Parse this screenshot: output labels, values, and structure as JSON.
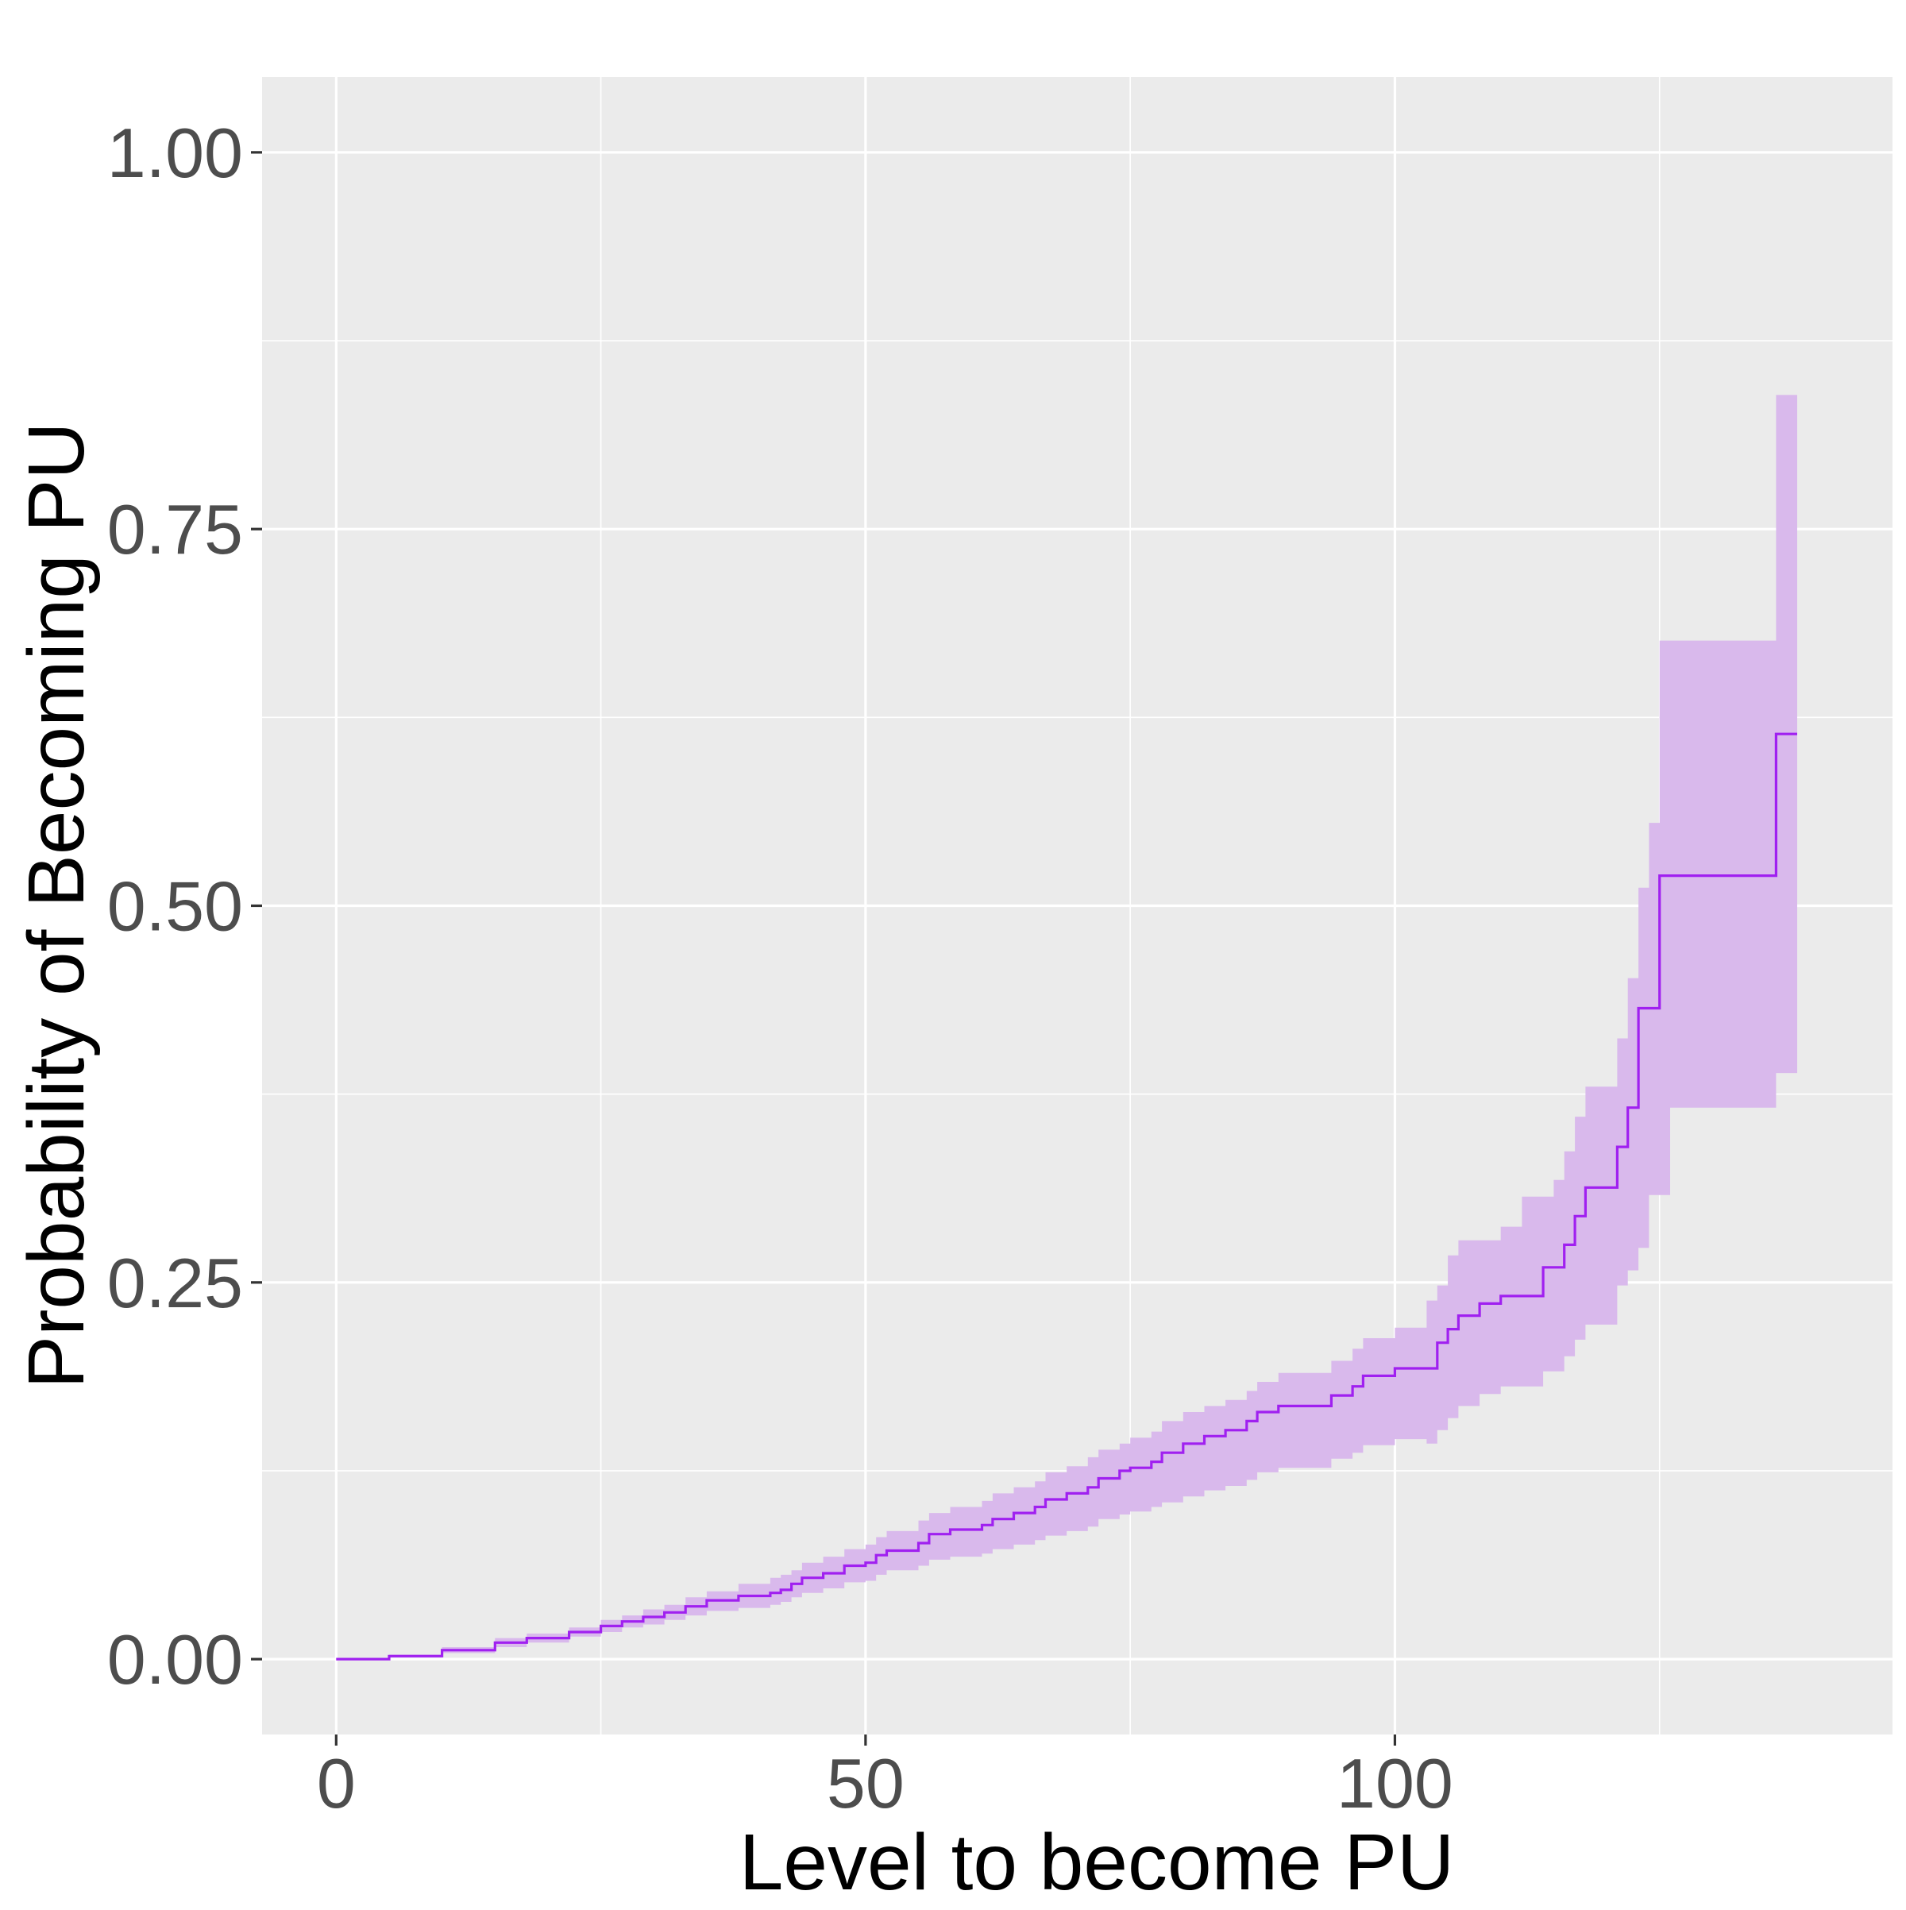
{
  "chart_data": {
    "type": "line",
    "title": "",
    "xlabel": "Level to become PU",
    "ylabel": "Probability of Becoming PU",
    "xlim": [
      -7,
      147
    ],
    "ylim": [
      -0.05,
      1.05
    ],
    "x_ticks": [
      0,
      50,
      100
    ],
    "x_tick_labels": [
      "0",
      "50",
      "100"
    ],
    "x_minor_ticks": [
      25,
      75,
      125
    ],
    "y_ticks": [
      0,
      0.25,
      0.5,
      0.75,
      1
    ],
    "y_tick_labels": [
      "0.00",
      "0.25",
      "0.50",
      "0.75",
      "1.00"
    ],
    "y_minor_ticks": [
      0.125,
      0.375,
      0.625,
      0.875
    ],
    "grid": true,
    "colors": {
      "panel": "#EBEBEB",
      "grid": "#FFFFFF",
      "line": "#A020F0",
      "band": "#D9B9EC",
      "tick_text": "#4D4D4D",
      "axis_title": "#000000"
    },
    "series": [
      {
        "style": "step",
        "x": [
          0,
          5,
          10,
          15,
          18,
          22,
          25,
          27,
          29,
          31,
          33,
          35,
          38,
          41,
          42,
          43,
          44,
          46,
          48,
          50,
          51,
          52,
          55,
          56,
          58,
          61,
          62,
          64,
          66,
          67,
          69,
          71,
          72,
          74,
          75,
          77,
          78,
          80,
          82,
          84,
          86,
          87,
          89,
          93,
          94,
          96,
          97,
          100,
          103,
          104,
          105,
          106,
          108,
          110,
          112,
          114,
          115,
          116,
          117,
          118,
          120,
          121,
          122,
          123,
          124,
          125,
          126,
          127,
          131,
          136,
          138
        ],
        "y": [
          0,
          0.002,
          0.006,
          0.011,
          0.014,
          0.018,
          0.022,
          0.025,
          0.028,
          0.031,
          0.035,
          0.039,
          0.042,
          0.044,
          0.046,
          0.05,
          0.054,
          0.057,
          0.062,
          0.064,
          0.069,
          0.072,
          0.077,
          0.083,
          0.086,
          0.089,
          0.093,
          0.097,
          0.101,
          0.106,
          0.11,
          0.114,
          0.12,
          0.125,
          0.127,
          0.131,
          0.137,
          0.143,
          0.148,
          0.152,
          0.158,
          0.164,
          0.168,
          0.168,
          0.175,
          0.181,
          0.188,
          0.193,
          0.193,
          0.21,
          0.219,
          0.228,
          0.236,
          0.241,
          0.241,
          0.26,
          0.26,
          0.275,
          0.294,
          0.313,
          0.313,
          0.34,
          0.366,
          0.432,
          0.432,
          0.52,
          0.52,
          0.52,
          0.52,
          0.614,
          0.614
        ],
        "ci_lower": [
          0,
          0.001,
          0.004,
          0.008,
          0.011,
          0.015,
          0.018,
          0.021,
          0.023,
          0.026,
          0.029,
          0.032,
          0.034,
          0.036,
          0.038,
          0.041,
          0.044,
          0.047,
          0.051,
          0.052,
          0.056,
          0.059,
          0.062,
          0.066,
          0.068,
          0.07,
          0.073,
          0.076,
          0.079,
          0.082,
          0.085,
          0.088,
          0.093,
          0.096,
          0.098,
          0.101,
          0.104,
          0.108,
          0.112,
          0.115,
          0.119,
          0.124,
          0.127,
          0.127,
          0.133,
          0.137,
          0.142,
          0.146,
          0.143,
          0.152,
          0.16,
          0.168,
          0.176,
          0.181,
          0.181,
          0.191,
          0.191,
          0.201,
          0.212,
          0.222,
          0.222,
          0.248,
          0.258,
          0.273,
          0.308,
          0.308,
          0.366,
          0.366,
          0.366,
          0.389,
          0.389
        ],
        "ci_upper": [
          0,
          0.003,
          0.008,
          0.014,
          0.017,
          0.021,
          0.026,
          0.029,
          0.033,
          0.036,
          0.041,
          0.045,
          0.05,
          0.054,
          0.056,
          0.059,
          0.064,
          0.068,
          0.073,
          0.076,
          0.081,
          0.085,
          0.092,
          0.097,
          0.101,
          0.105,
          0.11,
          0.114,
          0.118,
          0.124,
          0.128,
          0.134,
          0.139,
          0.143,
          0.147,
          0.151,
          0.158,
          0.164,
          0.168,
          0.172,
          0.178,
          0.184,
          0.19,
          0.19,
          0.198,
          0.206,
          0.213,
          0.22,
          0.238,
          0.248,
          0.268,
          0.278,
          0.278,
          0.287,
          0.307,
          0.307,
          0.318,
          0.337,
          0.36,
          0.38,
          0.38,
          0.412,
          0.452,
          0.512,
          0.555,
          0.676,
          0.676,
          0.676,
          0.676,
          0.839,
          0.839
        ]
      }
    ]
  }
}
